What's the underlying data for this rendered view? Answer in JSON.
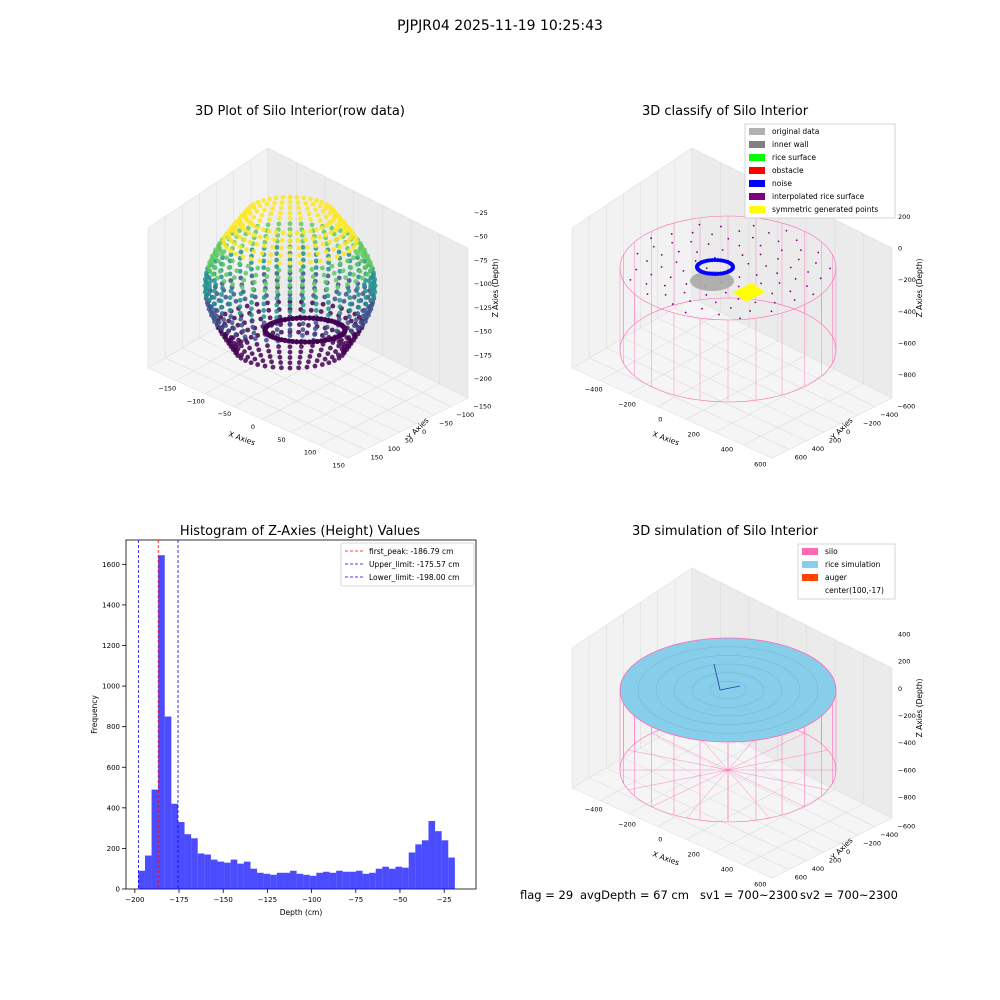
{
  "suptitle": "PJPJR04 2025-11-19 10:25:43",
  "footer": {
    "flag": "flag = 29",
    "avg": "avgDepth = 67 cm",
    "sv1": "sv1 = 700~2300",
    "sv2": "sv2 = 700~2300"
  },
  "chart_data": [
    {
      "type": "scatter",
      "title": "3D Plot of Silo Interior(row data)",
      "xlabel": "X Axies",
      "ylabel": "Y Axies",
      "zlabel": "Z Axies (Depth)",
      "x_ticks": [
        "−150",
        "−100",
        "−50",
        "0",
        "50",
        "100",
        "150"
      ],
      "y_ticks": [
        "150",
        "100",
        "50",
        "0",
        "−50",
        "−100",
        "−150"
      ],
      "z_ticks": [
        "−25",
        "−50",
        "−75",
        "−100",
        "−125",
        "−150",
        "−175",
        "−200"
      ],
      "xlim": [
        -175,
        175
      ],
      "ylim": [
        -150,
        150
      ],
      "zlim": [
        -205,
        -15
      ],
      "colormap": "viridis",
      "colors": {
        "low": "#440154",
        "mid": "#21918c",
        "high": "#fde725"
      }
    },
    {
      "type": "scatter",
      "title": "3D classify of Silo Interior",
      "xlabel": "X Axies",
      "ylabel": "Y Axies",
      "zlabel": "Z Axies (Depth)",
      "x_ticks": [
        "−400",
        "−200",
        "0",
        "200",
        "400",
        "600"
      ],
      "y_ticks": [
        "600",
        "400",
        "200",
        "0",
        "−200",
        "−400",
        "−600"
      ],
      "z_ticks": [
        "200",
        "0",
        "−200",
        "−400",
        "−600",
        "−800"
      ],
      "legend_position": "top-right",
      "legend": [
        {
          "label": "original data",
          "color": "#b0b0b0"
        },
        {
          "label": "inner wall",
          "color": "#808080"
        },
        {
          "label": "rice surface",
          "color": "#00ff00"
        },
        {
          "label": "obstacle",
          "color": "#ff0000"
        },
        {
          "label": "noise",
          "color": "#0000ff"
        },
        {
          "label": "interpolated rice surface",
          "color": "#800080"
        },
        {
          "label": "symmetric generated points",
          "color": "#ffff00"
        }
      ]
    },
    {
      "type": "bar",
      "title": "Histogram of Z-Axies (Height) Values",
      "xlabel": "Depth (cm)",
      "ylabel": "Frequency",
      "xlim": [
        -205,
        -7
      ],
      "ylim": [
        0,
        1720
      ],
      "x_ticks": [
        -200,
        -175,
        -150,
        -125,
        -100,
        -75,
        -50,
        -25
      ],
      "x_tick_labels": [
        "−200",
        "−175",
        "−150",
        "−125",
        "−100",
        "−75",
        "−50",
        "−25"
      ],
      "y_ticks": [
        0,
        200,
        400,
        600,
        800,
        1000,
        1200,
        1400,
        1600
      ],
      "y_tick_labels": [
        "0",
        "200",
        "400",
        "600",
        "800",
        "1000",
        "1200",
        "1400",
        "1600"
      ],
      "bin_start": -198.0,
      "bin_width": 3.73,
      "values": [
        90,
        165,
        490,
        1645,
        850,
        420,
        330,
        270,
        250,
        175,
        170,
        145,
        135,
        130,
        145,
        125,
        135,
        100,
        80,
        75,
        70,
        80,
        80,
        90,
        75,
        70,
        65,
        80,
        85,
        80,
        90,
        85,
        85,
        90,
        75,
        80,
        100,
        110,
        100,
        110,
        105,
        180,
        220,
        240,
        335,
        285,
        240,
        155
      ],
      "bar_color": "#0000ff",
      "bar_opacity": 0.7,
      "lines": [
        {
          "label": "first_peak: -186.79 cm",
          "x": -186.79,
          "color": "#ff0000"
        },
        {
          "label": "Upper_limit: -175.57 cm",
          "x": -175.57,
          "color": "#0000ff"
        },
        {
          "label": "Lower_limit: -198.00 cm",
          "x": -198.0,
          "color": "#0000ff"
        }
      ],
      "legend_position": "top-right"
    },
    {
      "type": "area",
      "title": "3D simulation of Silo Interior",
      "xlabel": "X Axies",
      "ylabel": "Y Axies",
      "zlabel": "Z Axies (Depth)",
      "x_ticks": [
        "−400",
        "−200",
        "0",
        "200",
        "400",
        "600"
      ],
      "y_ticks": [
        "600",
        "400",
        "200",
        "0",
        "−200",
        "−400",
        "−600"
      ],
      "z_ticks": [
        "400",
        "200",
        "0",
        "−200",
        "−400",
        "−600",
        "−800"
      ],
      "legend_position": "top-right",
      "legend": [
        {
          "label": "silo",
          "color": "#ff69b4"
        },
        {
          "label": "rice simulation",
          "color": "#87ceeb"
        },
        {
          "label": "auger",
          "color": "#ff4500"
        },
        {
          "label": "center(100,-17)",
          "color": ""
        }
      ]
    }
  ]
}
